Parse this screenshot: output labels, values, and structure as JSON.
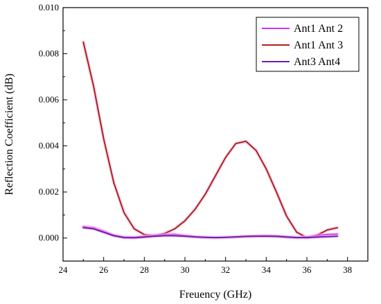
{
  "chart_data": {
    "type": "line",
    "title": "",
    "xlabel": "Freuency (GHz)",
    "ylabel": "Reflection Coefficient (dB)",
    "xlim": [
      24,
      39
    ],
    "ylim": [
      -0.001,
      0.01
    ],
    "x_ticks": [
      24,
      26,
      28,
      30,
      32,
      34,
      36,
      38
    ],
    "y_ticks": [
      0.0,
      0.002,
      0.004,
      0.006,
      0.008,
      0.01
    ],
    "x_tick_labels": [
      "24",
      "26",
      "28",
      "30",
      "32",
      "34",
      "36",
      "38"
    ],
    "y_tick_labels": [
      "0.000",
      "0.002",
      "0.004",
      "0.006",
      "0.008",
      "0.010"
    ],
    "grid": false,
    "legend_position": "top-right",
    "series": [
      {
        "name": "Ant1 Ant 2",
        "color": "#cc33ff",
        "x": [
          25,
          25.5,
          26,
          26.5,
          27,
          27.5,
          28,
          28.5,
          29,
          29.5,
          30,
          30.5,
          31,
          31.5,
          32,
          32.5,
          33,
          33.5,
          34,
          34.5,
          35,
          35.5,
          36,
          36.5,
          37,
          37.5
        ],
        "y": [
          0.0005,
          0.00045,
          0.0003,
          0.00012,
          4e-05,
          3e-05,
          8e-05,
          0.00012,
          0.00015,
          0.00016,
          0.00011,
          6e-05,
          3e-05,
          2e-05,
          3e-05,
          5e-05,
          7e-05,
          9e-05,
          0.0001,
          9e-05,
          6e-05,
          3e-05,
          4e-05,
          0.0001,
          0.00015,
          0.00017
        ]
      },
      {
        "name": "Ant1 Ant 3",
        "color": "#aa2418",
        "x": [
          25,
          25.5,
          26,
          26.5,
          27,
          27.5,
          28,
          28.5,
          29,
          29.5,
          30,
          30.5,
          31,
          31.5,
          32,
          32.5,
          33,
          33.5,
          34,
          34.5,
          35,
          35.5,
          36,
          36.5,
          37,
          37.5
        ],
        "y": [
          0.0085,
          0.0066,
          0.0043,
          0.0024,
          0.0011,
          0.0004,
          0.00015,
          0.0001,
          0.0002,
          0.0004,
          0.00075,
          0.00125,
          0.0019,
          0.0027,
          0.0035,
          0.0041,
          0.0042,
          0.0038,
          0.003,
          0.002,
          0.00095,
          0.00025,
          2e-05,
          0.00012,
          0.00035,
          0.00045
        ]
      },
      {
        "name": "Ant3 Ant4",
        "color": "#6a1faa",
        "x": [
          25,
          25.5,
          26,
          26.5,
          27,
          27.5,
          28,
          28.5,
          29,
          29.5,
          30,
          30.5,
          31,
          31.5,
          32,
          32.5,
          33,
          33.5,
          34,
          34.5,
          35,
          35.5,
          36,
          36.5,
          37,
          37.5
        ],
        "y": [
          0.00045,
          0.0004,
          0.00025,
          0.0001,
          2e-05,
          1e-05,
          4e-05,
          8e-05,
          0.0001,
          0.0001,
          8e-05,
          5e-05,
          3e-05,
          2e-05,
          3e-05,
          5e-05,
          7e-05,
          8e-05,
          8e-05,
          7e-05,
          4e-05,
          2e-05,
          2e-05,
          4e-05,
          6e-05,
          8e-05
        ]
      }
    ]
  }
}
